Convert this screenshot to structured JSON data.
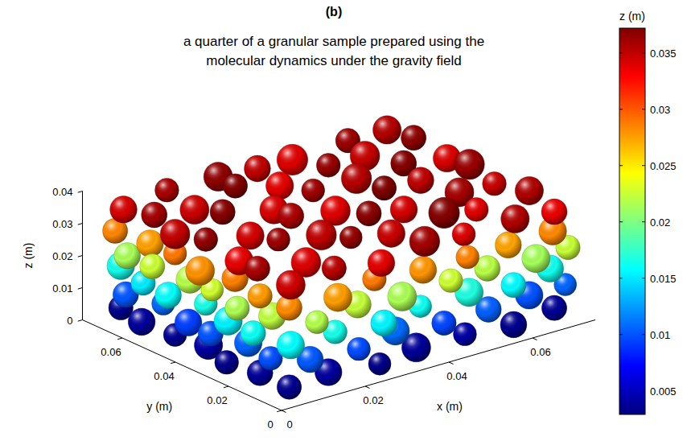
{
  "chart_data": {
    "type": "scatter3d",
    "panel_label": "(b)",
    "title": [
      "a quarter of a granular sample prepared using the",
      "molecular dynamics under the gravity field"
    ],
    "xlabel": "x (m)",
    "ylabel": "y (m)",
    "zlabel": "z (m)",
    "marker": "sphere",
    "grid": false,
    "xlim": [
      0,
      0.075
    ],
    "ylim": [
      0,
      0.075
    ],
    "zlim": [
      0,
      0.04
    ],
    "xticks": [
      0,
      0.02,
      0.04,
      0.06
    ],
    "yticks": [
      0,
      0.02,
      0.04,
      0.06
    ],
    "zticks": [
      0,
      0.01,
      0.02,
      0.03,
      0.04
    ],
    "color_label": "z (m)",
    "color_range": [
      0.0029,
      0.0372
    ],
    "color_ticks": [
      0.005,
      0.01,
      0.015,
      0.02,
      0.025,
      0.03,
      0.035
    ],
    "x": [
      0.005,
      0.015,
      0.026,
      0.036,
      0.047,
      0.058,
      0.069,
      0.005,
      0.004,
      0.006,
      0.005,
      0.004,
      0.006,
      0.01,
      0.021,
      0.031,
      0.042,
      0.052,
      0.063,
      0.071,
      0.005,
      0.006,
      0.004,
      0.005,
      0.006,
      0.004,
      0.006,
      0.016,
      0.027,
      0.037,
      0.048,
      0.058,
      0.068,
      0.004,
      0.005,
      0.006,
      0.004,
      0.005,
      0.006,
      0.011,
      0.022,
      0.032,
      0.043,
      0.053,
      0.064,
      0.071,
      0.006,
      0.004,
      0.005,
      0.006,
      0.004,
      0.005,
      0.005,
      0.016,
      0.026,
      0.037,
      0.047,
      0.058,
      0.068,
      0.005,
      0.006,
      0.004,
      0.005,
      0.006,
      0.004,
      0.006,
      0.017,
      0.027,
      0.038,
      0.048,
      0.059,
      0.069,
      0.005,
      0.016,
      0.028,
      0.037,
      0.049,
      0.058,
      0.07,
      0.007,
      0.017,
      0.026,
      0.038,
      0.047,
      0.059,
      0.068,
      0.006,
      0.016,
      0.027,
      0.037,
      0.048,
      0.058,
      0.069,
      0.005,
      0.017,
      0.028,
      0.038,
      0.049,
      0.059,
      0.07,
      0.007,
      0.016,
      0.027,
      0.037,
      0.048,
      0.058,
      0.069,
      0.006,
      0.017,
      0.028,
      0.038,
      0.047,
      0.059,
      0.069
    ],
    "y": [
      0.005,
      0.006,
      0.004,
      0.006,
      0.005,
      0.004,
      0.006,
      0.016,
      0.027,
      0.037,
      0.048,
      0.059,
      0.07,
      0.005,
      0.004,
      0.006,
      0.005,
      0.004,
      0.006,
      0.005,
      0.012,
      0.022,
      0.033,
      0.043,
      0.054,
      0.065,
      0.006,
      0.005,
      0.004,
      0.006,
      0.005,
      0.004,
      0.006,
      0.017,
      0.028,
      0.038,
      0.049,
      0.06,
      0.07,
      0.004,
      0.006,
      0.005,
      0.004,
      0.006,
      0.005,
      0.004,
      0.013,
      0.023,
      0.034,
      0.044,
      0.055,
      0.066,
      0.005,
      0.004,
      0.006,
      0.005,
      0.004,
      0.006,
      0.005,
      0.016,
      0.027,
      0.037,
      0.048,
      0.059,
      0.069,
      0.006,
      0.007,
      0.005,
      0.006,
      0.007,
      0.005,
      0.006,
      0.017,
      0.016,
      0.018,
      0.017,
      0.016,
      0.018,
      0.017,
      0.027,
      0.028,
      0.026,
      0.027,
      0.028,
      0.026,
      0.027,
      0.038,
      0.037,
      0.039,
      0.038,
      0.037,
      0.039,
      0.038,
      0.048,
      0.049,
      0.047,
      0.048,
      0.049,
      0.047,
      0.048,
      0.059,
      0.058,
      0.06,
      0.059,
      0.058,
      0.06,
      0.059,
      0.069,
      0.07,
      0.068,
      0.069,
      0.07,
      0.068,
      0.069
    ],
    "z": [
      0.0035,
      0.004,
      0.0032,
      0.0038,
      0.0042,
      0.0034,
      0.0037,
      0.0038,
      0.0033,
      0.0041,
      0.0036,
      0.0039,
      0.0034,
      0.0102,
      0.0097,
      0.0108,
      0.0095,
      0.0104,
      0.0099,
      0.0106,
      0.0098,
      0.0105,
      0.01,
      0.0093,
      0.0107,
      0.0101,
      0.0158,
      0.0165,
      0.0155,
      0.0162,
      0.0168,
      0.0157,
      0.0163,
      0.0161,
      0.0154,
      0.0166,
      0.0159,
      0.0152,
      0.0164,
      0.0218,
      0.0224,
      0.0215,
      0.0227,
      0.022,
      0.0213,
      0.0225,
      0.0222,
      0.0216,
      0.0228,
      0.0219,
      0.0226,
      0.0214,
      0.0282,
      0.0276,
      0.0288,
      0.0279,
      0.0285,
      0.0274,
      0.0283,
      0.0277,
      0.0286,
      0.028,
      0.0289,
      0.0275,
      0.0284,
      0.0345,
      0.0352,
      0.0338,
      0.036,
      0.0341,
      0.0355,
      0.0336,
      0.0358,
      0.034,
      0.0365,
      0.0347,
      0.037,
      0.0339,
      0.0356,
      0.0337,
      0.0362,
      0.035,
      0.0368,
      0.0343,
      0.0359,
      0.0348,
      0.0366,
      0.0344,
      0.0357,
      0.0339,
      0.0372,
      0.0351,
      0.0363,
      0.0349,
      0.0369,
      0.0342,
      0.0361,
      0.0353,
      0.037,
      0.0341,
      0.036,
      0.0346,
      0.0371,
      0.0338,
      0.0364,
      0.0348,
      0.0367,
      0.0343,
      0.0358,
      0.0366,
      0.035,
      0.034,
      0.0362,
      0.0354
    ],
    "size": [
      0.0038,
      0.0042,
      0.0035,
      0.0045,
      0.0036,
      0.0041,
      0.0039,
      0.004,
      0.0037,
      0.0044,
      0.0036,
      0.0042,
      0.0038,
      0.0041,
      0.0036,
      0.0044,
      0.0038,
      0.004,
      0.0043,
      0.0035,
      0.0037,
      0.0043,
      0.0039,
      0.0042,
      0.0036,
      0.004,
      0.0043,
      0.0037,
      0.0041,
      0.0035,
      0.0044,
      0.0039,
      0.0042,
      0.0039,
      0.0044,
      0.0036,
      0.0041,
      0.0038,
      0.0043,
      0.0036,
      0.0042,
      0.0045,
      0.0037,
      0.004,
      0.0044,
      0.0038,
      0.0042,
      0.0038,
      0.0035,
      0.0043,
      0.0039,
      0.0041,
      0.004,
      0.0044,
      0.0037,
      0.0042,
      0.0036,
      0.0041,
      0.0043,
      0.0038,
      0.0041,
      0.0045,
      0.0036,
      0.0042,
      0.0039,
      0.0045,
      0.0038,
      0.0042,
      0.0047,
      0.0036,
      0.0044,
      0.004,
      0.0039,
      0.0046,
      0.0035,
      0.0043,
      0.0048,
      0.0037,
      0.0044,
      0.0044,
      0.0036,
      0.0047,
      0.0039,
      0.0042,
      0.0045,
      0.0037,
      0.0037,
      0.0043,
      0.004,
      0.0046,
      0.0038,
      0.0041,
      0.0047,
      0.0046,
      0.0039,
      0.0044,
      0.0036,
      0.0047,
      0.004,
      0.0043,
      0.004,
      0.0045,
      0.0038,
      0.0043,
      0.0037,
      0.0046,
      0.0039,
      0.0042,
      0.0037,
      0.0045,
      0.0041,
      0.0048,
      0.0038,
      0.0044
    ]
  }
}
